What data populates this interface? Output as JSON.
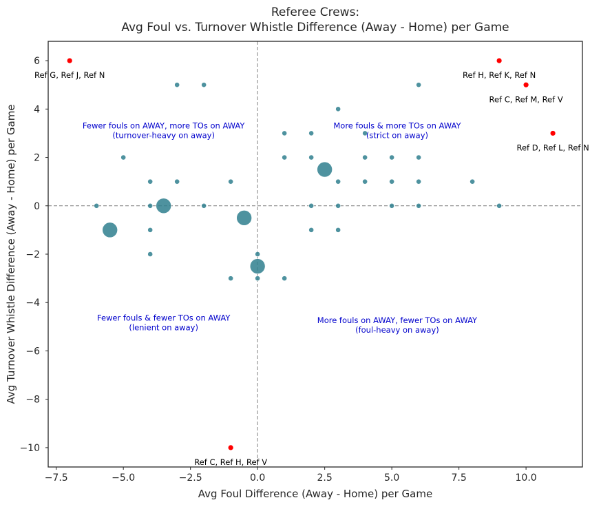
{
  "chart_data": {
    "type": "scatter",
    "title_line1": "Referee Crews:",
    "title_line2": "Avg Foul vs. Turnover Whistle Difference (Away - Home) per Game",
    "xlabel": "Avg Foul Difference (Away - Home) per Game",
    "ylabel": "Avg Turnover Whistle Difference (Away - Home) per Game",
    "xlim": [
      -7.8,
      12.1
    ],
    "ylim": [
      -10.8,
      6.8
    ],
    "xticks": [
      -7.5,
      -5.0,
      -2.5,
      0.0,
      2.5,
      5.0,
      7.5,
      10.0
    ],
    "xtick_labels": [
      "−7.5",
      "−5.0",
      "−2.5",
      "0.0",
      "2.5",
      "5.0",
      "7.5",
      "10.0"
    ],
    "yticks": [
      -10,
      -8,
      -6,
      -4,
      -2,
      0,
      2,
      4,
      6
    ],
    "ytick_labels": [
      "−10",
      "−8",
      "−6",
      "−4",
      "−2",
      "0",
      "2",
      "4",
      "6"
    ],
    "grid": false,
    "reference_lines": {
      "x": 0,
      "y": 0,
      "style": "dashed",
      "color": "#808080"
    },
    "colors": {
      "point": "#2f7f8e",
      "outlier": "#ff0000",
      "quadrant_text": "#0000cc",
      "outlier_text": "#000000",
      "axes": "#262626"
    },
    "points": [
      {
        "x": -3,
        "y": 5,
        "size": 1
      },
      {
        "x": -2,
        "y": 5,
        "size": 1
      },
      {
        "x": 6,
        "y": 5,
        "size": 1
      },
      {
        "x": 3,
        "y": 4,
        "size": 1
      },
      {
        "x": 1,
        "y": 3,
        "size": 1
      },
      {
        "x": 2,
        "y": 3,
        "size": 1
      },
      {
        "x": 4,
        "y": 3,
        "size": 1
      },
      {
        "x": -5,
        "y": 2,
        "size": 1
      },
      {
        "x": 1,
        "y": 2,
        "size": 1
      },
      {
        "x": 2,
        "y": 2,
        "size": 1
      },
      {
        "x": 4,
        "y": 2,
        "size": 1
      },
      {
        "x": 5,
        "y": 2,
        "size": 1
      },
      {
        "x": 6,
        "y": 2,
        "size": 1
      },
      {
        "x": 2.5,
        "y": 1.5,
        "size": 4
      },
      {
        "x": -4,
        "y": 1,
        "size": 1
      },
      {
        "x": -3,
        "y": 1,
        "size": 1
      },
      {
        "x": -1,
        "y": 1,
        "size": 1
      },
      {
        "x": 3,
        "y": 1,
        "size": 1
      },
      {
        "x": 4,
        "y": 1,
        "size": 1
      },
      {
        "x": 5,
        "y": 1,
        "size": 1
      },
      {
        "x": 6,
        "y": 1,
        "size": 1
      },
      {
        "x": 8,
        "y": 1,
        "size": 1
      },
      {
        "x": -6,
        "y": 0,
        "size": 1
      },
      {
        "x": -4,
        "y": 0,
        "size": 1
      },
      {
        "x": -3.5,
        "y": 0,
        "size": 4
      },
      {
        "x": -2,
        "y": 0,
        "size": 1
      },
      {
        "x": 2,
        "y": 0,
        "size": 1
      },
      {
        "x": 3,
        "y": 0,
        "size": 1
      },
      {
        "x": 5,
        "y": 0,
        "size": 1
      },
      {
        "x": 6,
        "y": 0,
        "size": 1
      },
      {
        "x": 9,
        "y": 0,
        "size": 1
      },
      {
        "x": -5.5,
        "y": -1,
        "size": 4
      },
      {
        "x": -4,
        "y": -1,
        "size": 1
      },
      {
        "x": 2,
        "y": -1,
        "size": 1
      },
      {
        "x": 3,
        "y": -1,
        "size": 1
      },
      {
        "x": -0.5,
        "y": -0.5,
        "size": 4
      },
      {
        "x": -4,
        "y": -2,
        "size": 1
      },
      {
        "x": 0,
        "y": -2,
        "size": 1
      },
      {
        "x": 0,
        "y": -2.5,
        "size": 4
      },
      {
        "x": -1,
        "y": -3,
        "size": 1
      },
      {
        "x": 0,
        "y": -3,
        "size": 1
      },
      {
        "x": 1,
        "y": -3,
        "size": 1
      }
    ],
    "outliers": [
      {
        "x": -7,
        "y": 6,
        "label": "Ref G, Ref J, Ref N",
        "anchor": "middle",
        "dx": 0,
        "dy": 0.6
      },
      {
        "x": 9,
        "y": 6,
        "label": "Ref H, Ref K, Ref N",
        "anchor": "middle",
        "dx": 0,
        "dy": 0.6
      },
      {
        "x": 10,
        "y": 5,
        "label": "Ref C, Ref M, Ref V",
        "anchor": "middle",
        "dx": 0,
        "dy": 0.6
      },
      {
        "x": 11,
        "y": 3,
        "label": "Ref D, Ref L, Ref N",
        "anchor": "middle",
        "dx": 0,
        "dy": 0.6
      },
      {
        "x": -1,
        "y": -10,
        "label": "Ref C, Ref H, Ref V",
        "anchor": "middle",
        "dx": 0,
        "dy": 0.6
      }
    ],
    "quadrant_annotations": [
      {
        "x": -3.5,
        "y": 3.2,
        "line1": "Fewer fouls on AWAY, more TOs on AWAY",
        "line2": "(turnover-heavy on away)"
      },
      {
        "x": 5.2,
        "y": 3.2,
        "line1": "More fouls & more TOs on AWAY",
        "line2": "(strict on away)"
      },
      {
        "x": -3.5,
        "y": -4.75,
        "line1": "Fewer fouls & fewer TOs on AWAY",
        "line2": "(lenient on away)"
      },
      {
        "x": 5.2,
        "y": -4.85,
        "line1": "More fouls on AWAY, fewer TOs on AWAY",
        "line2": "(foul-heavy on away)"
      }
    ]
  }
}
